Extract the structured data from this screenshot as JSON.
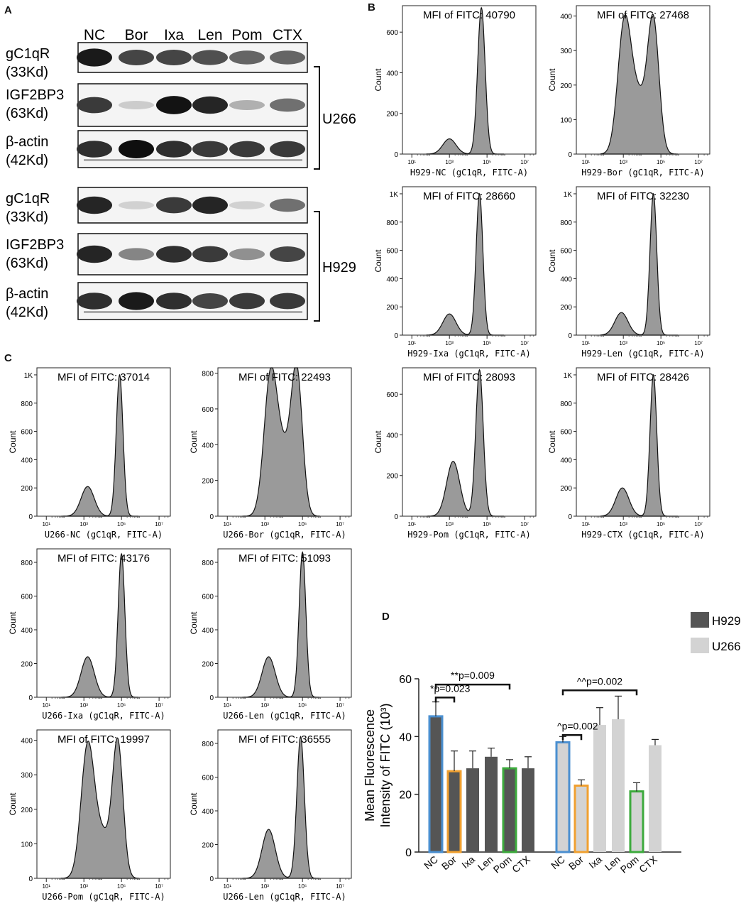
{
  "panels": {
    "A": "A",
    "B": "B",
    "C": "C",
    "D": "D"
  },
  "blot": {
    "lanes": [
      "NC",
      "Bor",
      "Ixa",
      "Len",
      "Pom",
      "CTX"
    ],
    "groups": [
      {
        "cell_line": "U266",
        "rows": [
          {
            "name": "gC1qR",
            "mw": "(33Kd)",
            "intensity": [
              0.95,
              0.75,
              0.75,
              0.7,
              0.6,
              0.6
            ]
          },
          {
            "name": "IGF2BP3",
            "mw": "(63Kd)",
            "intensity": [
              0.8,
              0.12,
              0.98,
              0.9,
              0.25,
              0.55
            ]
          },
          {
            "name": "β-actin",
            "mw": "(42Kd)",
            "intensity": [
              0.85,
              1.0,
              0.85,
              0.8,
              0.8,
              0.8
            ]
          }
        ]
      },
      {
        "cell_line": "H929",
        "rows": [
          {
            "name": "gC1qR",
            "mw": "(33Kd)",
            "intensity": [
              0.9,
              0.1,
              0.8,
              0.9,
              0.1,
              0.55
            ]
          },
          {
            "name": "IGF2BP3",
            "mw": "(63Kd)",
            "intensity": [
              0.9,
              0.45,
              0.85,
              0.8,
              0.4,
              0.75
            ]
          },
          {
            "name": "β-actin",
            "mw": "(42Kd)",
            "intensity": [
              0.85,
              0.95,
              0.85,
              0.75,
              0.8,
              0.8
            ]
          }
        ]
      }
    ]
  },
  "histograms": [
    {
      "id": "h929-nc",
      "mfi": "MFI of FITC: 40790",
      "xlabel": "H929-NC (gC1qR, FITC-A)",
      "yticks": [
        "0",
        "200",
        "400",
        "600"
      ],
      "ymax": 730,
      "peaks": [
        {
          "pos": 3.0,
          "height": 75,
          "width": 0.35
        },
        {
          "pos": 4.7,
          "height": 720,
          "width": 0.2
        }
      ]
    },
    {
      "id": "h929-bor",
      "mfi": "MFI of FITC: 27468",
      "xlabel": "H929-Bor (gC1qR, FITC-A)",
      "yticks": [
        "0",
        "100",
        "200",
        "300",
        "400"
      ],
      "ymax": 430,
      "peaks": [
        {
          "pos": 3.05,
          "height": 360,
          "width": 0.35
        },
        {
          "pos": 4.6,
          "height": 370,
          "width": 0.3
        },
        {
          "pos": 3.8,
          "height": 160,
          "width": 0.45
        }
      ]
    },
    {
      "id": "h929-ixa",
      "mfi": "MFI of FITC: 28660",
      "xlabel": "H929-Ixa (gC1qR, FITC-A)",
      "yticks": [
        "0",
        "200",
        "400",
        "600",
        "800",
        "1K"
      ],
      "ymax": 1050,
      "peaks": [
        {
          "pos": 3.0,
          "height": 150,
          "width": 0.35
        },
        {
          "pos": 4.6,
          "height": 1000,
          "width": 0.18
        }
      ]
    },
    {
      "id": "h929-len",
      "mfi": "MFI of FITC: 32230",
      "xlabel": "H929-Len (gC1qR, FITC-A)",
      "yticks": [
        "0",
        "200",
        "400",
        "600",
        "800",
        "1K"
      ],
      "ymax": 1050,
      "peaks": [
        {
          "pos": 2.9,
          "height": 160,
          "width": 0.35
        },
        {
          "pos": 4.6,
          "height": 1000,
          "width": 0.18
        }
      ]
    },
    {
      "id": "h929-pom",
      "mfi": "MFI of FITC: 28093",
      "xlabel": "H929-Pom (gC1qR, FITC-A)",
      "yticks": [
        "0",
        "200",
        "400",
        "600"
      ],
      "ymax": 730,
      "peaks": [
        {
          "pos": 3.2,
          "height": 270,
          "width": 0.35
        },
        {
          "pos": 4.6,
          "height": 720,
          "width": 0.2
        }
      ]
    },
    {
      "id": "h929-ctx",
      "mfi": "MFI of FITC: 28426",
      "xlabel": "H929-CTX (gC1qR, FITC-A)",
      "yticks": [
        "0",
        "200",
        "400",
        "600",
        "800",
        "1K"
      ],
      "ymax": 1050,
      "peaks": [
        {
          "pos": 2.95,
          "height": 200,
          "width": 0.35
        },
        {
          "pos": 4.6,
          "height": 1000,
          "width": 0.18
        }
      ]
    },
    {
      "id": "u266-nc",
      "mfi": "MFI of FITC: 37014",
      "xlabel": "U266-NC (gC1qR, FITC-A)",
      "yticks": [
        "0",
        "200",
        "400",
        "600",
        "800",
        "1K"
      ],
      "ymax": 1050,
      "peaks": [
        {
          "pos": 3.2,
          "height": 210,
          "width": 0.35
        },
        {
          "pos": 4.9,
          "height": 1000,
          "width": 0.18
        }
      ]
    },
    {
      "id": "u266-bor",
      "mfi": "MFI of FITC: 22493",
      "xlabel": "U266-Bor (gC1qR, FITC-A)",
      "yticks": [
        "0",
        "200",
        "400",
        "600",
        "800"
      ],
      "ymax": 830,
      "peaks": [
        {
          "pos": 3.3,
          "height": 760,
          "width": 0.35
        },
        {
          "pos": 4.7,
          "height": 780,
          "width": 0.3
        },
        {
          "pos": 4.0,
          "height": 320,
          "width": 0.4
        }
      ]
    },
    {
      "id": "u266-ixa",
      "mfi": "MFI of FITC: 43176",
      "xlabel": "U266-Ixa (gC1qR, FITC-A)",
      "yticks": [
        "0",
        "200",
        "400",
        "600",
        "800"
      ],
      "ymax": 880,
      "peaks": [
        {
          "pos": 3.2,
          "height": 240,
          "width": 0.35
        },
        {
          "pos": 5.0,
          "height": 850,
          "width": 0.18
        }
      ]
    },
    {
      "id": "u266-len",
      "mfi": "MFI of FITC: 51093",
      "xlabel": "U266-Len (gC1qR, FITC-A)",
      "yticks": [
        "0",
        "200",
        "400",
        "600",
        "800"
      ],
      "ymax": 880,
      "peaks": [
        {
          "pos": 3.2,
          "height": 240,
          "width": 0.35
        },
        {
          "pos": 5.0,
          "height": 860,
          "width": 0.18
        }
      ]
    },
    {
      "id": "u266-pom",
      "mfi": "MFI of FITC: 19997",
      "xlabel": "U266-Pom (gC1qR, FITC-A)",
      "yticks": [
        "0",
        "100",
        "200",
        "300",
        "400"
      ],
      "ymax": 430,
      "peaks": [
        {
          "pos": 3.2,
          "height": 380,
          "width": 0.35
        },
        {
          "pos": 4.8,
          "height": 390,
          "width": 0.28
        },
        {
          "pos": 4.0,
          "height": 120,
          "width": 0.4
        }
      ]
    },
    {
      "id": "u266-len-2",
      "mfi": "MFI of FITC: 36555",
      "xlabel": "U266-Len (gC1qR, FITC-A)",
      "yticks": [
        "0",
        "200",
        "400",
        "600",
        "800"
      ],
      "ymax": 880,
      "peaks": [
        {
          "pos": 3.2,
          "height": 290,
          "width": 0.35
        },
        {
          "pos": 4.9,
          "height": 840,
          "width": 0.2
        }
      ]
    }
  ],
  "hist_common": {
    "ylabel": "Count",
    "xticks": [
      "10¹",
      "10³",
      "10⁵",
      "10⁷"
    ]
  },
  "chart_data": {
    "type": "bar",
    "ylabel": "Mean Fluorescence Intensity of FITC (10³)",
    "ylim": [
      0,
      60
    ],
    "yticks": [
      "0",
      "20",
      "40",
      "60"
    ],
    "categories": [
      "NC",
      "Bor",
      "Ixa",
      "Len",
      "Pom",
      "CTX"
    ],
    "series": [
      {
        "name": "H929",
        "color": "#555555",
        "values": [
          47,
          28,
          29,
          33,
          29,
          29
        ],
        "errors": [
          5,
          7,
          6,
          3,
          3,
          4
        ]
      },
      {
        "name": "U266",
        "color": "#d3d3d3",
        "values": [
          38,
          23,
          44,
          46,
          21,
          37
        ],
        "errors": [
          2,
          2,
          6,
          8,
          3,
          2
        ]
      }
    ],
    "highlight": {
      "NC": "#4a8fd0",
      "Bor": "#f0a030",
      "Pom": "#3caa3c"
    },
    "annotations": [
      {
        "text": "*p=0.023",
        "series": "H929",
        "from": "NC",
        "to": "Bor"
      },
      {
        "text": "**p=0.009",
        "series": "H929",
        "from": "NC",
        "to": "Pom"
      },
      {
        "text": "^p=0.002",
        "series": "U266",
        "from": "NC",
        "to": "Bor"
      },
      {
        "text": "^^p=0.002",
        "series": "U266",
        "from": "NC",
        "to": "Pom"
      }
    ],
    "legend_position": "top-right"
  }
}
